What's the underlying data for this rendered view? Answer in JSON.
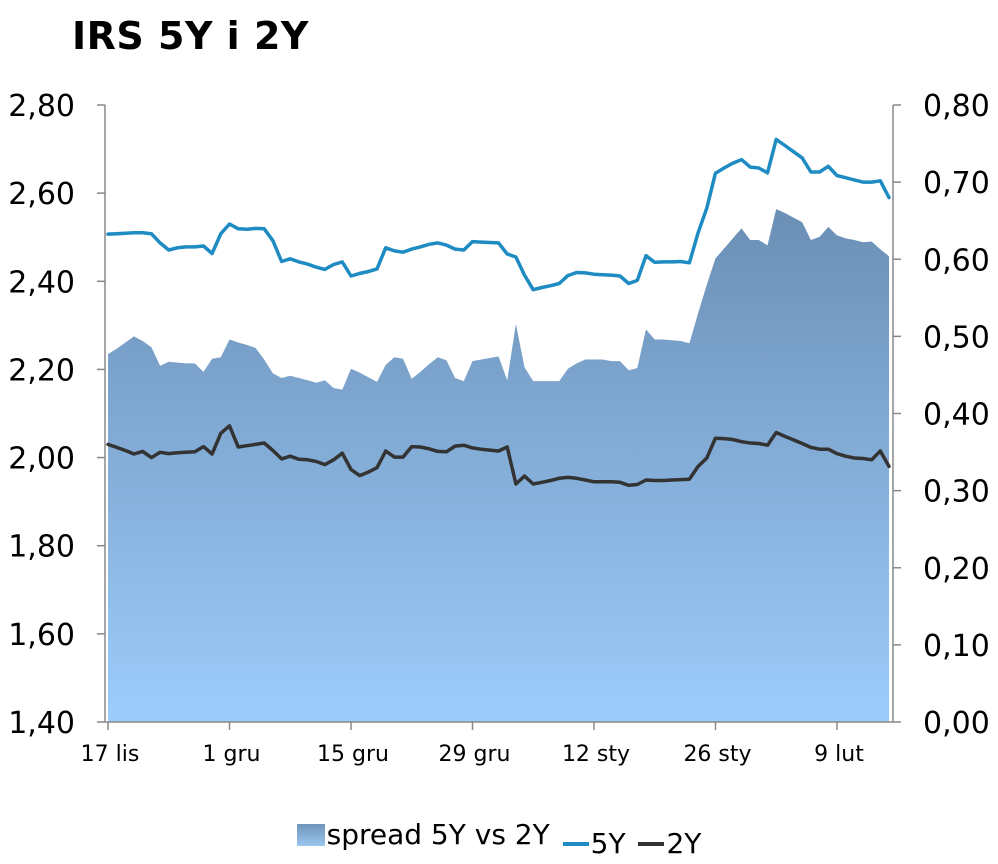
{
  "chart_data": {
    "type": "line",
    "title": "IRS 5Y i 2Y",
    "x_ticks": [
      "17 lis",
      "1 gru",
      "15 gru",
      "29 gru",
      "12 sty",
      "26 sty",
      "9 lut"
    ],
    "y_left_ticks": [
      "2,80",
      "2,60",
      "2,40",
      "2,20",
      "2,00",
      "1,80",
      "1,60",
      "1,40"
    ],
    "y_right_ticks": [
      "0,80",
      "0,70",
      "0,60",
      "0,50",
      "0,40",
      "0,30",
      "0,20",
      "0,10",
      "0,00"
    ],
    "ylim_left": [
      1.4,
      2.8
    ],
    "ylim_right": [
      0.0,
      0.8
    ],
    "grid": false,
    "legend_position": "bottom",
    "series": [
      {
        "name": "spread 5Y vs 2Y",
        "type": "area",
        "axis": "right",
        "color": "#7fa6d0",
        "values": [
          0.477,
          0.484,
          0.492,
          0.5,
          0.494,
          0.486,
          0.462,
          0.467,
          0.466,
          0.465,
          0.465,
          0.454,
          0.471,
          0.473,
          0.496,
          0.492,
          0.489,
          0.485,
          0.47,
          0.452,
          0.446,
          0.449,
          0.446,
          0.443,
          0.44,
          0.443,
          0.433,
          0.431,
          0.458,
          0.453,
          0.447,
          0.441,
          0.463,
          0.473,
          0.471,
          0.445,
          0.454,
          0.464,
          0.473,
          0.469,
          0.446,
          0.442,
          0.468,
          0.47,
          0.472,
          0.474,
          0.443,
          0.516,
          0.46,
          0.442,
          0.442,
          0.442,
          0.442,
          0.458,
          0.465,
          0.47,
          0.47,
          0.47,
          0.468,
          0.468,
          0.456,
          0.459,
          0.509,
          0.496,
          0.496,
          0.495,
          0.494,
          0.491,
          0.53,
          0.567,
          0.601,
          0.614,
          0.627,
          0.64,
          0.625,
          0.625,
          0.618,
          0.665,
          0.66,
          0.654,
          0.648,
          0.625,
          0.629,
          0.642,
          0.631,
          0.627,
          0.625,
          0.622,
          0.623,
          0.613,
          0.604
        ]
      },
      {
        "name": "5Y",
        "type": "line",
        "axis": "left",
        "color": "#1e8bc3",
        "values": [
          2.507,
          2.508,
          2.509,
          2.51,
          2.51,
          2.508,
          2.487,
          2.471,
          2.476,
          2.478,
          2.478,
          2.48,
          2.463,
          2.508,
          2.53,
          2.519,
          2.518,
          2.52,
          2.519,
          2.492,
          2.445,
          2.451,
          2.444,
          2.439,
          2.432,
          2.427,
          2.438,
          2.444,
          2.412,
          2.418,
          2.422,
          2.428,
          2.476,
          2.469,
          2.466,
          2.473,
          2.478,
          2.484,
          2.487,
          2.482,
          2.473,
          2.471,
          2.49,
          2.489,
          2.488,
          2.487,
          2.462,
          2.455,
          2.414,
          2.381,
          2.386,
          2.39,
          2.395,
          2.413,
          2.42,
          2.419,
          2.416,
          2.415,
          2.414,
          2.412,
          2.395,
          2.402,
          2.458,
          2.443,
          2.444,
          2.444,
          2.445,
          2.442,
          2.51,
          2.566,
          2.645,
          2.657,
          2.668,
          2.676,
          2.659,
          2.657,
          2.646,
          2.722,
          2.708,
          2.694,
          2.68,
          2.648,
          2.648,
          2.661,
          2.64,
          2.635,
          2.63,
          2.625,
          2.625,
          2.628,
          2.59
        ]
      },
      {
        "name": "2Y",
        "type": "line",
        "axis": "left",
        "color": "#333333",
        "values": [
          2.03,
          2.023,
          2.016,
          2.008,
          2.014,
          2.0,
          2.012,
          2.009,
          2.011,
          2.012,
          2.013,
          2.025,
          2.008,
          2.055,
          2.072,
          2.024,
          2.027,
          2.03,
          2.033,
          2.016,
          1.997,
          2.003,
          1.996,
          1.995,
          1.991,
          1.984,
          1.995,
          2.01,
          1.973,
          1.959,
          1.967,
          1.977,
          2.015,
          2.001,
          2.001,
          2.025,
          2.024,
          2.02,
          2.014,
          2.013,
          2.026,
          2.028,
          2.022,
          2.019,
          2.017,
          2.015,
          2.024,
          1.94,
          1.958,
          1.94,
          1.944,
          1.948,
          1.953,
          1.955,
          1.953,
          1.949,
          1.945,
          1.945,
          1.945,
          1.944,
          1.937,
          1.939,
          1.949,
          1.948,
          1.948,
          1.949,
          1.95,
          1.951,
          1.98,
          1.999,
          2.044,
          2.043,
          2.041,
          2.036,
          2.033,
          2.032,
          2.028,
          2.057,
          2.048,
          2.04,
          2.032,
          2.023,
          2.019,
          2.019,
          2.009,
          2.003,
          1.999,
          1.998,
          1.995,
          2.015,
          1.98
        ]
      }
    ]
  },
  "legend": {
    "spread_label": "spread 5Y vs 2Y",
    "five_y_label": "5Y",
    "two_y_label": "2Y"
  }
}
